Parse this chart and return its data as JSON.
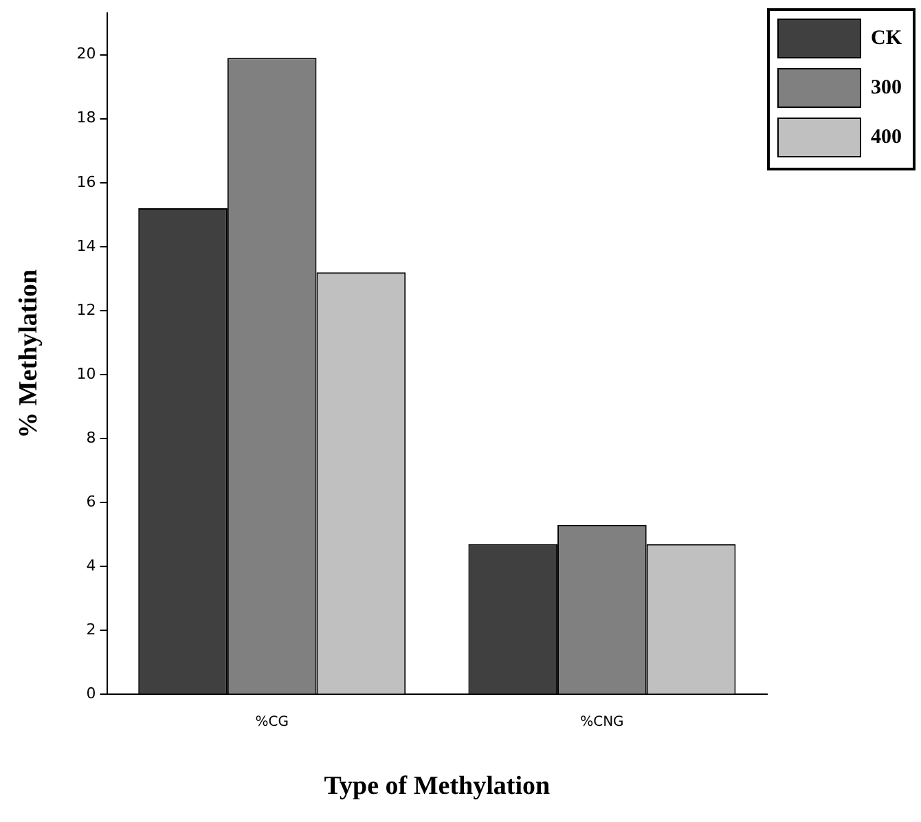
{
  "chart_data": {
    "type": "bar",
    "xlabel": "Type of Methylation",
    "ylabel": "% Methylation",
    "categories": [
      "%CG",
      "%CNG"
    ],
    "series": [
      {
        "name": "CK",
        "color": "#404040",
        "values": [
          15.2,
          4.7
        ]
      },
      {
        "name": "300",
        "color": "#808080",
        "values": [
          19.9,
          5.3
        ]
      },
      {
        "name": "400",
        "color": "#c0c0c0",
        "values": [
          13.2,
          4.7
        ]
      }
    ],
    "ylim": [
      0,
      21.3
    ],
    "yticks": [
      0,
      2,
      4,
      6,
      8,
      10,
      12,
      14,
      16,
      18,
      20
    ],
    "grid": false,
    "legend": "top right"
  }
}
